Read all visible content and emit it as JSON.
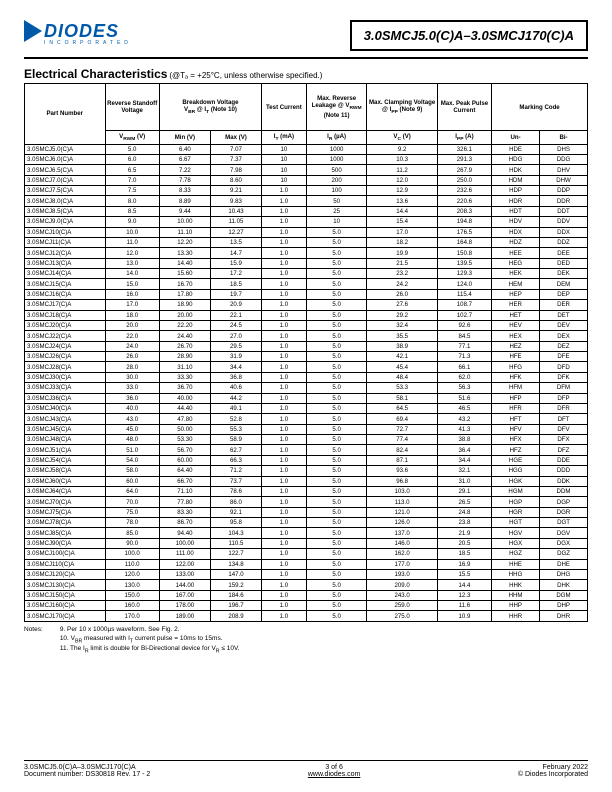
{
  "logo": {
    "brand": "DIODES",
    "sub": "INCORPORATED"
  },
  "title": "3.0SMCJ5.0(C)A–3.0SMCJ170(C)A",
  "section": {
    "heading": "Electrical Characteristics",
    "cond": "(@Tₐ = +25°C, unless otherwise specified.)"
  },
  "cols": {
    "pn": "Part Number",
    "vrwm_h": "Reverse Standoff Voltage",
    "bd_h": "Breakdown Voltage",
    "bd_sub": "V<sub>BR</sub> @ I<sub>T</sub> (Note 10)",
    "it_h": "Test Current",
    "ir_h": "Max. Reverse Leakage @ V<sub>RWM</sub> (Note 11)",
    "vc_h": "Max. Clamping Voltage @ I<sub>PP</sub> (Note 9)",
    "ipp_h": "Max. Peak Pulse Current",
    "mark_h": "Marking Code",
    "vrwm": "V<sub>RWM</sub> (V)",
    "min": "Min (V)",
    "max": "Max (V)",
    "it": "I<sub>T</sub> (mA)",
    "ir": "I<sub>R</sub> (µA)",
    "vc": "V<sub>C</sub> (V)",
    "ipp": "I<sub>PP</sub> (A)",
    "un": "Un-",
    "bi": "Bi-"
  },
  "rows": [
    [
      "3.0SMCJ5.0(C)A",
      "5.0",
      "6.40",
      "7.07",
      "10",
      "1000",
      "9.2",
      "326.1",
      "HDE",
      "DHS"
    ],
    [
      "3.0SMCJ6.0(C)A",
      "6.0",
      "6.67",
      "7.37",
      "10",
      "1000",
      "10.3",
      "291.3",
      "HDG",
      "DDG"
    ],
    [
      "3.0SMCJ6.5(C)A",
      "6.5",
      "7.22",
      "7.98",
      "10",
      "500",
      "11.2",
      "267.9",
      "HDK",
      "DHV"
    ],
    [
      "3.0SMCJ7.0(C)A",
      "7.0",
      "7.78",
      "8.60",
      "10",
      "200",
      "12.0",
      "250.0",
      "HDM",
      "DHW"
    ],
    [
      "3.0SMCJ7.5(C)A",
      "7.5",
      "8.33",
      "9.21",
      "1.0",
      "100",
      "12.9",
      "232.6",
      "HDP",
      "DDP"
    ],
    [
      "3.0SMCJ8.0(C)A",
      "8.0",
      "8.89",
      "9.83",
      "1.0",
      "50",
      "13.6",
      "220.6",
      "HDR",
      "DDR"
    ],
    [
      "3.0SMCJ8.5(C)A",
      "8.5",
      "9.44",
      "10.43",
      "1.0",
      "25",
      "14.4",
      "208.3",
      "HDT",
      "DDT"
    ],
    [
      "3.0SMCJ9.0(C)A",
      "9.0",
      "10.00",
      "11.05",
      "1.0",
      "10",
      "15.4",
      "194.8",
      "HDV",
      "DDV"
    ],
    [
      "3.0SMCJ10(C)A",
      "10.0",
      "11.10",
      "12.27",
      "1.0",
      "5.0",
      "17.0",
      "176.5",
      "HDX",
      "DDX"
    ],
    [
      "3.0SMCJ11(C)A",
      "11.0",
      "12.20",
      "13.5",
      "1.0",
      "5.0",
      "18.2",
      "164.8",
      "HDZ",
      "DDZ"
    ],
    [
      "3.0SMCJ12(C)A",
      "12.0",
      "13.30",
      "14.7",
      "1.0",
      "5.0",
      "19.9",
      "150.8",
      "HEE",
      "DEE"
    ],
    [
      "3.0SMCJ13(C)A",
      "13.0",
      "14.40",
      "15.9",
      "1.0",
      "5.0",
      "21.5",
      "139.5",
      "HEG",
      "DED"
    ],
    [
      "3.0SMCJ14(C)A",
      "14.0",
      "15.60",
      "17.2",
      "1.0",
      "5.0",
      "23.2",
      "129.3",
      "HEK",
      "DEK"
    ],
    [
      "3.0SMCJ15(C)A",
      "15.0",
      "16.70",
      "18.5",
      "1.0",
      "5.0",
      "24.2",
      "124.0",
      "HEM",
      "DEM"
    ],
    [
      "3.0SMCJ16(C)A",
      "16.0",
      "17.80",
      "19.7",
      "1.0",
      "5.0",
      "26.0",
      "115.4",
      "HEP",
      "DEP"
    ],
    [
      "3.0SMCJ17(C)A",
      "17.0",
      "18.90",
      "20.9",
      "1.0",
      "5.0",
      "27.6",
      "108.7",
      "HER",
      "DER"
    ],
    [
      "3.0SMCJ18(C)A",
      "18.0",
      "20.00",
      "22.1",
      "1.0",
      "5.0",
      "29.2",
      "102.7",
      "HET",
      "DET"
    ],
    [
      "3.0SMCJ20(C)A",
      "20.0",
      "22.20",
      "24.5",
      "1.0",
      "5.0",
      "32.4",
      "92.6",
      "HEV",
      "DEV"
    ],
    [
      "3.0SMCJ22(C)A",
      "22.0",
      "24.40",
      "27.0",
      "1.0",
      "5.0",
      "35.5",
      "84.5",
      "HEX",
      "DEX"
    ],
    [
      "3.0SMCJ24(C)A",
      "24.0",
      "26.70",
      "29.5",
      "1.0",
      "5.0",
      "38.9",
      "77.1",
      "HEZ",
      "DEZ"
    ],
    [
      "3.0SMCJ26(C)A",
      "26.0",
      "28.90",
      "31.9",
      "1.0",
      "5.0",
      "42.1",
      "71.3",
      "HFE",
      "DFE"
    ],
    [
      "3.0SMCJ28(C)A",
      "28.0",
      "31.10",
      "34.4",
      "1.0",
      "5.0",
      "45.4",
      "66.1",
      "HFG",
      "DFD"
    ],
    [
      "3.0SMCJ30(C)A",
      "30.0",
      "33.30",
      "36.8",
      "1.0",
      "5.0",
      "48.4",
      "62.0",
      "HFK",
      "DFK"
    ],
    [
      "3.0SMCJ33(C)A",
      "33.0",
      "36.70",
      "40.6",
      "1.0",
      "5.0",
      "53.3",
      "56.3",
      "HFM",
      "DFM"
    ],
    [
      "3.0SMCJ36(C)A",
      "36.0",
      "40.00",
      "44.2",
      "1.0",
      "5.0",
      "58.1",
      "51.6",
      "HFP",
      "DFP"
    ],
    [
      "3.0SMCJ40(C)A",
      "40.0",
      "44.40",
      "49.1",
      "1.0",
      "5.0",
      "64.5",
      "46.5",
      "HFR",
      "DFR"
    ],
    [
      "3.0SMCJ43(C)A",
      "43.0",
      "47.80",
      "52.8",
      "1.0",
      "5.0",
      "69.4",
      "43.2",
      "HFT",
      "DFT"
    ],
    [
      "3.0SMCJ45(C)A",
      "45.0",
      "50.00",
      "55.3",
      "1.0",
      "5.0",
      "72.7",
      "41.3",
      "HFV",
      "DFV"
    ],
    [
      "3.0SMCJ48(C)A",
      "48.0",
      "53.30",
      "58.9",
      "1.0",
      "5.0",
      "77.4",
      "38.8",
      "HFX",
      "DFX"
    ],
    [
      "3.0SMCJ51(C)A",
      "51.0",
      "56.70",
      "62.7",
      "1.0",
      "5.0",
      "82.4",
      "36.4",
      "HFZ",
      "DFZ"
    ],
    [
      "3.0SMCJ54(C)A",
      "54.0",
      "60.00",
      "66.3",
      "1.0",
      "5.0",
      "87.1",
      "34.4",
      "HGE",
      "DDE"
    ],
    [
      "3.0SMCJ58(C)A",
      "58.0",
      "64.40",
      "71.2",
      "1.0",
      "5.0",
      "93.6",
      "32.1",
      "HGG",
      "DDD"
    ],
    [
      "3.0SMCJ60(C)A",
      "60.0",
      "66.70",
      "73.7",
      "1.0",
      "5.0",
      "96.8",
      "31.0",
      "HGK",
      "DDK"
    ],
    [
      "3.0SMCJ64(C)A",
      "64.0",
      "71.10",
      "78.6",
      "1.0",
      "5.0",
      "103.0",
      "29.1",
      "HGM",
      "DDM"
    ],
    [
      "3.0SMCJ70(C)A",
      "70.0",
      "77.80",
      "86.0",
      "1.0",
      "5.0",
      "113.0",
      "26.5",
      "HGP",
      "DGP"
    ],
    [
      "3.0SMCJ75(C)A",
      "75.0",
      "83.30",
      "92.1",
      "1.0",
      "5.0",
      "121.0",
      "24.8",
      "HGR",
      "DGR"
    ],
    [
      "3.0SMCJ78(C)A",
      "78.0",
      "86.70",
      "95.8",
      "1.0",
      "5.0",
      "126.0",
      "23.8",
      "HGT",
      "DGT"
    ],
    [
      "3.0SMCJ85(C)A",
      "85.0",
      "94.40",
      "104.3",
      "1.0",
      "5.0",
      "137.0",
      "21.9",
      "HGV",
      "DGV"
    ],
    [
      "3.0SMCJ90(C)A",
      "90.0",
      "100.00",
      "110.5",
      "1.0",
      "5.0",
      "146.0",
      "20.5",
      "HGX",
      "DGX"
    ],
    [
      "3.0SMCJ100(C)A",
      "100.0",
      "111.00",
      "122.7",
      "1.0",
      "5.0",
      "162.0",
      "18.5",
      "HGZ",
      "DGZ"
    ],
    [
      "3.0SMCJ110(C)A",
      "110.0",
      "122.00",
      "134.8",
      "1.0",
      "5.0",
      "177.0",
      "16.9",
      "HHE",
      "DHE"
    ],
    [
      "3.0SMCJ120(C)A",
      "120.0",
      "133.00",
      "147.0",
      "1.0",
      "5.0",
      "193.0",
      "15.5",
      "HHG",
      "DHG"
    ],
    [
      "3.0SMCJ130(C)A",
      "130.0",
      "144.00",
      "159.2",
      "1.0",
      "5.0",
      "209.0",
      "14.4",
      "HHK",
      "DHK"
    ],
    [
      "3.0SMCJ150(C)A",
      "150.0",
      "167.00",
      "184.6",
      "1.0",
      "5.0",
      "243.0",
      "12.3",
      "HHM",
      "DGM"
    ],
    [
      "3.0SMCJ160(C)A",
      "160.0",
      "178.00",
      "196.7",
      "1.0",
      "5.0",
      "259.0",
      "11.6",
      "HHP",
      "DHP"
    ],
    [
      "3.0SMCJ170(C)A",
      "170.0",
      "189.00",
      "208.9",
      "1.0",
      "5.0",
      "275.0",
      "10.9",
      "HHR",
      "DHR"
    ]
  ],
  "notes": {
    "label": "Notes:",
    "n9": "9. Per 10 x 1000µs waveform. See Fig. 2.",
    "n10": "10. V<sub>BR</sub> measured with I<sub>T</sub> current pulse = 10ms to 15ms.",
    "n11": "11. The I<sub>R</sub> limit is double for Bi-Directional device for V<sub>R</sub> ≤ 10V."
  },
  "footer": {
    "left1": "3.0SMCJ5.0(C)A–3.0SMCJ170(C)A",
    "left2": "Document number: DS30818 Rev. 17 - 2",
    "center1": "3 of 6",
    "center2": "www.diodes.com",
    "right1": "February 2022",
    "right2": "© Diodes Incorporated"
  }
}
